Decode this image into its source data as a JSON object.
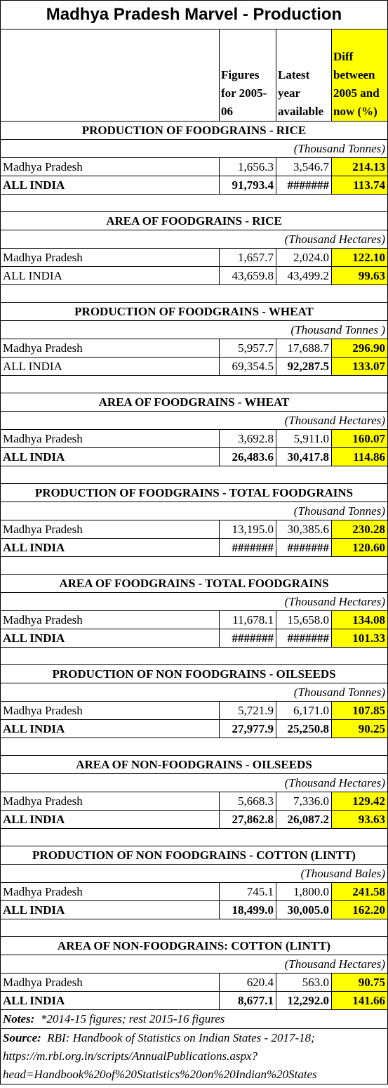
{
  "title": "Madhya Pradesh Marvel - Production",
  "header": [
    "",
    "Figures for 2005-06",
    "Latest year available",
    "Diff between 2005 and now (%)"
  ],
  "sections": [
    {
      "title": "PRODUCTION OF FOODGRAINS - RICE",
      "unit": "(Thousand Tonnes)",
      "rows": [
        {
          "cells": [
            "Madhya Pradesh",
            "1,656.3",
            "3,546.7",
            "214.13"
          ],
          "bold": [
            false,
            false,
            false,
            true
          ]
        },
        {
          "cells": [
            "ALL INDIA",
            "91,793.4",
            "#######",
            "113.74"
          ],
          "bold": [
            true,
            true,
            true,
            true
          ]
        }
      ]
    },
    {
      "title": "AREA OF FOODGRAINS - RICE",
      "unit": "(Thousand Hectares)",
      "rows": [
        {
          "cells": [
            "Madhya Pradesh",
            "1,657.7",
            "2,024.0",
            "122.10"
          ],
          "bold": [
            false,
            false,
            false,
            true
          ]
        },
        {
          "cells": [
            "ALL INDIA",
            "43,659.8",
            "43,499.2",
            "99.63"
          ],
          "bold": [
            false,
            false,
            false,
            true
          ]
        }
      ]
    },
    {
      "title": "PRODUCTION OF FOODGRAINS - WHEAT",
      "unit": "(Thousand Tonnes )",
      "rows": [
        {
          "cells": [
            "Madhya Pradesh",
            "5,957.7",
            "17,688.7",
            "296.90"
          ],
          "bold": [
            false,
            false,
            false,
            true
          ]
        },
        {
          "cells": [
            "ALL INDIA",
            "69,354.5",
            "92,287.5",
            "133.07"
          ],
          "bold": [
            false,
            false,
            true,
            true
          ]
        }
      ]
    },
    {
      "title": "AREA OF FOODGRAINS - WHEAT",
      "unit": "(Thousand Hectares)",
      "rows": [
        {
          "cells": [
            "Madhya Pradesh",
            "3,692.8",
            "5,911.0",
            "160.07"
          ],
          "bold": [
            false,
            false,
            false,
            true
          ]
        },
        {
          "cells": [
            "ALL INDIA",
            "26,483.6",
            "30,417.8",
            "114.86"
          ],
          "bold": [
            true,
            true,
            true,
            true
          ]
        }
      ]
    },
    {
      "title": "PRODUCTION OF FOODGRAINS - TOTAL FOODGRAINS",
      "unit": "(Thousand Tonnes)",
      "rows": [
        {
          "cells": [
            "Madhya Pradesh",
            "13,195.0",
            "30,385.6",
            "230.28"
          ],
          "bold": [
            false,
            false,
            false,
            true
          ]
        },
        {
          "cells": [
            "ALL INDIA",
            "#######",
            "#######",
            "120.60"
          ],
          "bold": [
            true,
            true,
            true,
            true
          ]
        }
      ]
    },
    {
      "title": "AREA OF FOODGRAINS - TOTAL FOODGRAINS",
      "unit": "(Thousand Hectares)",
      "rows": [
        {
          "cells": [
            "Madhya Pradesh",
            "11,678.1",
            "15,658.0",
            "134.08"
          ],
          "bold": [
            false,
            false,
            false,
            true
          ]
        },
        {
          "cells": [
            "ALL INDIA",
            "#######",
            "#######",
            "101.33"
          ],
          "bold": [
            true,
            true,
            true,
            true
          ]
        }
      ]
    },
    {
      "title": "PRODUCTION OF NON FOODGRAINS - OILSEEDS",
      "unit": "(Thousand Tonnes)",
      "rows": [
        {
          "cells": [
            "Madhya Pradesh",
            "5,721.9",
            "6,171.0",
            "107.85"
          ],
          "bold": [
            false,
            false,
            false,
            true
          ]
        },
        {
          "cells": [
            "ALL INDIA",
            "27,977.9",
            "25,250.8",
            "90.25"
          ],
          "bold": [
            true,
            true,
            true,
            true
          ]
        }
      ]
    },
    {
      "title": "AREA OF NON-FOODGRAINS - OILSEEDS",
      "unit": "(Thousand Hectares)",
      "rows": [
        {
          "cells": [
            "Madhya Pradesh",
            "5,668.3",
            "7,336.0",
            "129.42"
          ],
          "bold": [
            false,
            false,
            false,
            true
          ]
        },
        {
          "cells": [
            "ALL INDIA",
            "27,862.8",
            "26,087.2",
            "93.63"
          ],
          "bold": [
            true,
            true,
            true,
            true
          ]
        }
      ]
    },
    {
      "title": "PRODUCTION OF NON FOODGRAINS - COTTON (LINTT)",
      "unit": "(Thousand Bales)",
      "rows": [
        {
          "cells": [
            "Madhya Pradesh",
            "745.1",
            "1,800.0",
            "241.58"
          ],
          "bold": [
            false,
            false,
            false,
            true
          ]
        },
        {
          "cells": [
            "ALL INDIA",
            "18,499.0",
            "30,005.0",
            "162.20"
          ],
          "bold": [
            true,
            true,
            true,
            true
          ]
        }
      ]
    },
    {
      "title": "AREA OF NON-FOODGRAINS: COTTON (LINTT)",
      "unit": "(Thousand Hectares)",
      "rows": [
        {
          "cells": [
            "Madhya Pradesh",
            "620.4",
            "563.0",
            "90.75"
          ],
          "bold": [
            false,
            false,
            false,
            true
          ]
        },
        {
          "cells": [
            "ALL INDIA",
            "8,677.1",
            "12,292.0",
            "141.66"
          ],
          "bold": [
            true,
            true,
            true,
            true
          ]
        }
      ]
    }
  ],
  "notes": {
    "label": "Notes:",
    "text": "*2014-15 figures; rest 2015-16 figures"
  },
  "source": {
    "label": "Source:",
    "text": "RBI: Handbook of Statistics on Indian States - 2017-18; https://m.rbi.org.in/scripts/AnnualPublications.aspx?head=Handbook%20of%20Statistics%20on%20Indian%20States"
  }
}
